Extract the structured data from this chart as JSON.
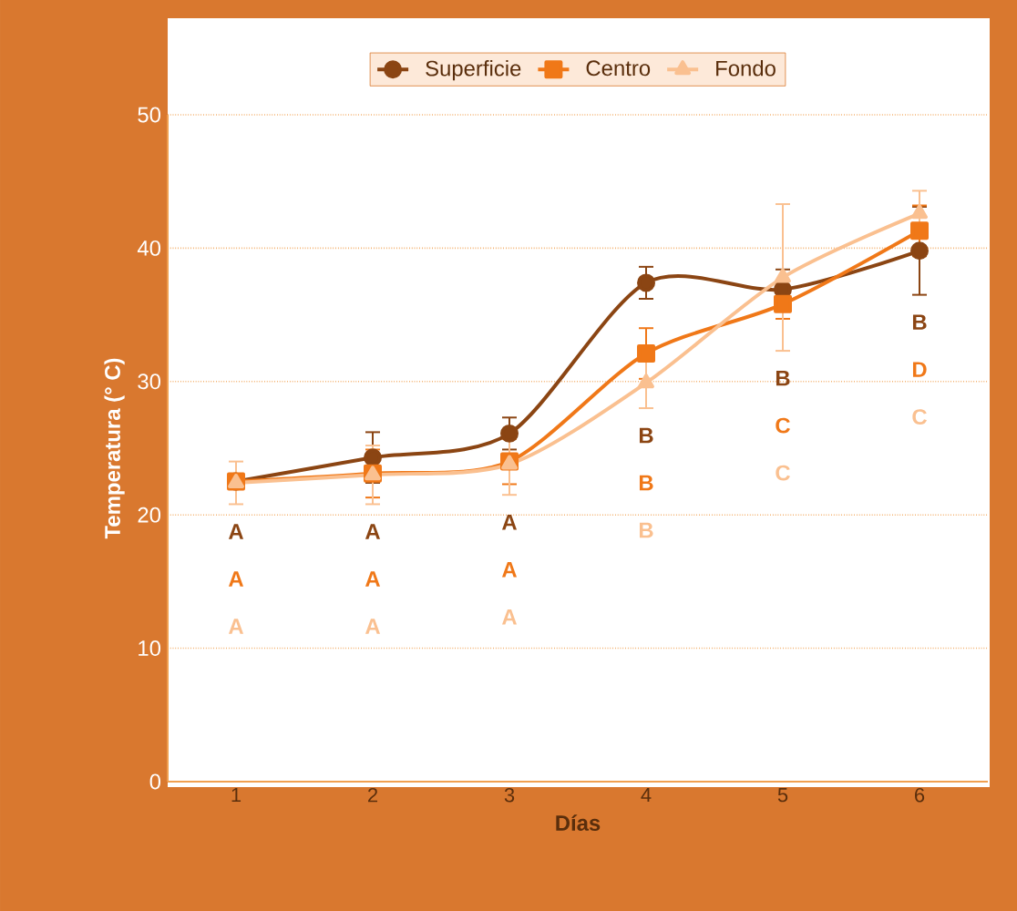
{
  "chart_data": {
    "type": "line",
    "xlabel": "Días",
    "ylabel": "Temperatura (° C)",
    "categories": [
      "1",
      "2",
      "3",
      "4",
      "5",
      "6"
    ],
    "series": [
      {
        "name": "Superficie",
        "color": "#8b4513",
        "marker": "circle",
        "values": [
          22.5,
          24.3,
          26.1,
          37.4,
          36.9,
          39.8
        ],
        "errors": [
          null,
          1.9,
          1.2,
          1.2,
          1.5,
          3.3
        ]
      },
      {
        "name": "Centro",
        "color": "#f07818",
        "marker": "square",
        "values": [
          22.5,
          23.1,
          24.0,
          32.1,
          35.8,
          41.3
        ],
        "errors": [
          null,
          1.8,
          1.7,
          1.9,
          1.1,
          1.9
        ]
      },
      {
        "name": "Fondo",
        "color": "#fac090",
        "marker": "triangle",
        "values": [
          22.4,
          23.0,
          23.8,
          29.9,
          37.8,
          42.6
        ],
        "errors": [
          1.6,
          2.2,
          2.3,
          1.9,
          5.5,
          1.7
        ]
      }
    ],
    "ylim": [
      0,
      50
    ],
    "yticks": [
      0,
      10,
      20,
      30,
      40,
      50
    ],
    "grid": "y",
    "legend": "top",
    "annotations": [
      "A",
      "A",
      "A",
      "A",
      "A",
      "A",
      "A",
      "A",
      "A",
      "B",
      "B",
      "B",
      "B",
      "C",
      "C",
      "B",
      "D",
      "C"
    ]
  }
}
